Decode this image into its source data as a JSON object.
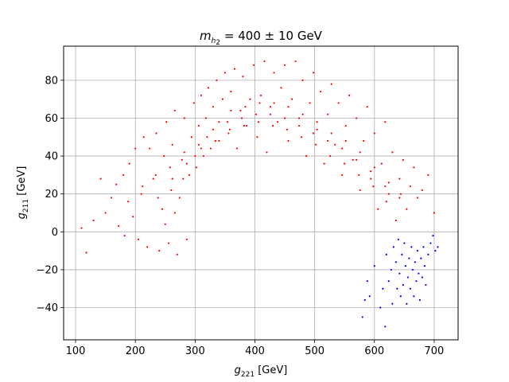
{
  "chart_data": {
    "type": "scatter",
    "title": {
      "base": "m",
      "sub": "h",
      "subsub": "2",
      "rest": " = 400 ± 10 GeV"
    },
    "xlabel": {
      "base": "g",
      "sub": "221",
      "rest": " [GeV]"
    },
    "ylabel": {
      "base": "g",
      "sub": "211",
      "rest": " [GeV]"
    },
    "xlim": [
      80,
      740
    ],
    "ylim": [
      -57,
      98
    ],
    "xticks": [
      100,
      200,
      300,
      400,
      500,
      600,
      700
    ],
    "yticks": [
      -40,
      -20,
      0,
      20,
      40,
      60,
      80
    ],
    "grid": true,
    "series": [
      {
        "color": "#ff0000",
        "points": [
          [
            110,
            2
          ],
          [
            118,
            -11
          ],
          [
            130,
            6
          ],
          [
            142,
            28
          ],
          [
            150,
            10
          ],
          [
            160,
            18
          ],
          [
            168,
            25
          ],
          [
            172,
            3
          ],
          [
            180,
            30
          ],
          [
            182,
            -2
          ],
          [
            190,
            36
          ],
          [
            196,
            8
          ],
          [
            200,
            44
          ],
          [
            205,
            -4
          ],
          [
            210,
            20
          ],
          [
            214,
            50
          ],
          [
            220,
            -8
          ],
          [
            224,
            44
          ],
          [
            230,
            28
          ],
          [
            235,
            52
          ],
          [
            240,
            -10
          ],
          [
            245,
            12
          ],
          [
            248,
            40
          ],
          [
            252,
            58
          ],
          [
            256,
            -6
          ],
          [
            260,
            22
          ],
          [
            262,
            46
          ],
          [
            266,
            64
          ],
          [
            270,
            -12
          ],
          [
            274,
            18
          ],
          [
            278,
            38
          ],
          [
            282,
            60
          ],
          [
            286,
            -4
          ],
          [
            290,
            30
          ],
          [
            294,
            50
          ],
          [
            298,
            68
          ],
          [
            302,
            34
          ],
          [
            306,
            56
          ],
          [
            310,
            72
          ],
          [
            314,
            40
          ],
          [
            318,
            60
          ],
          [
            322,
            76
          ],
          [
            326,
            44
          ],
          [
            330,
            66
          ],
          [
            336,
            80
          ],
          [
            340,
            48
          ],
          [
            346,
            70
          ],
          [
            350,
            84
          ],
          [
            356,
            52
          ],
          [
            360,
            74
          ],
          [
            366,
            86
          ],
          [
            370,
            44
          ],
          [
            376,
            64
          ],
          [
            380,
            82
          ],
          [
            386,
            56
          ],
          [
            392,
            70
          ],
          [
            398,
            88
          ],
          [
            404,
            50
          ],
          [
            410,
            72
          ],
          [
            416,
            90
          ],
          [
            420,
            42
          ],
          [
            426,
            66
          ],
          [
            432,
            84
          ],
          [
            438,
            58
          ],
          [
            444,
            76
          ],
          [
            450,
            88
          ],
          [
            456,
            48
          ],
          [
            462,
            70
          ],
          [
            468,
            90
          ],
          [
            474,
            60
          ],
          [
            480,
            80
          ],
          [
            486,
            40
          ],
          [
            492,
            68
          ],
          [
            498,
            84
          ],
          [
            504,
            54
          ],
          [
            510,
            74
          ],
          [
            516,
            36
          ],
          [
            522,
            62
          ],
          [
            528,
            78
          ],
          [
            534,
            46
          ],
          [
            540,
            68
          ],
          [
            546,
            30
          ],
          [
            552,
            56
          ],
          [
            558,
            72
          ],
          [
            564,
            38
          ],
          [
            570,
            60
          ],
          [
            576,
            22
          ],
          [
            582,
            48
          ],
          [
            588,
            66
          ],
          [
            594,
            28
          ],
          [
            600,
            52
          ],
          [
            606,
            12
          ],
          [
            612,
            36
          ],
          [
            618,
            58
          ],
          [
            624,
            20
          ],
          [
            630,
            42
          ],
          [
            636,
            6
          ],
          [
            642,
            28
          ],
          [
            648,
            38
          ],
          [
            654,
            12
          ],
          [
            660,
            24
          ],
          [
            666,
            34
          ],
          [
            672,
            18
          ],
          [
            680,
            22
          ],
          [
            690,
            30
          ],
          [
            700,
            10
          ],
          [
            234,
            30
          ],
          [
            258,
            34
          ],
          [
            282,
            42
          ],
          [
            306,
            46
          ],
          [
            330,
            54
          ],
          [
            354,
            58
          ],
          [
            378,
            60
          ],
          [
            402,
            62
          ],
          [
            426,
            62
          ],
          [
            450,
            60
          ],
          [
            474,
            56
          ],
          [
            498,
            52
          ],
          [
            522,
            48
          ],
          [
            546,
            44
          ],
          [
            570,
            38
          ],
          [
            594,
            32
          ],
          [
            618,
            24
          ],
          [
            642,
            18
          ],
          [
            250,
            4
          ],
          [
            266,
            10
          ],
          [
            280,
            28
          ],
          [
            300,
            40
          ],
          [
            320,
            50
          ],
          [
            340,
            58
          ],
          [
            360,
            64
          ],
          [
            384,
            66
          ],
          [
            408,
            68
          ],
          [
            432,
            68
          ],
          [
            456,
            66
          ],
          [
            480,
            62
          ],
          [
            504,
            58
          ],
          [
            528,
            52
          ],
          [
            552,
            48
          ],
          [
            576,
            42
          ],
          [
            600,
            34
          ],
          [
            624,
            26
          ],
          [
            644,
            20
          ],
          [
            188,
            16
          ],
          [
            212,
            24
          ],
          [
            238,
            18
          ],
          [
            262,
            28
          ],
          [
            286,
            36
          ],
          [
            310,
            44
          ],
          [
            334,
            48
          ],
          [
            358,
            54
          ],
          [
            382,
            56
          ],
          [
            406,
            58
          ],
          [
            430,
            56
          ],
          [
            454,
            54
          ],
          [
            478,
            50
          ],
          [
            502,
            46
          ],
          [
            526,
            40
          ],
          [
            550,
            36
          ],
          [
            574,
            30
          ],
          [
            598,
            24
          ],
          [
            620,
            16
          ]
        ]
      },
      {
        "color": "#0000ff",
        "points": [
          [
            580,
            -45
          ],
          [
            584,
            -36
          ],
          [
            588,
            -26
          ],
          [
            592,
            -34
          ],
          [
            600,
            -18
          ],
          [
            610,
            -40
          ],
          [
            614,
            -30
          ],
          [
            618,
            -50
          ],
          [
            620,
            -12
          ],
          [
            624,
            -26
          ],
          [
            628,
            -20
          ],
          [
            630,
            -38
          ],
          [
            632,
            -8
          ],
          [
            636,
            -16
          ],
          [
            638,
            -30
          ],
          [
            640,
            -4
          ],
          [
            642,
            -22
          ],
          [
            644,
            -34
          ],
          [
            646,
            -12
          ],
          [
            648,
            -28
          ],
          [
            650,
            -6
          ],
          [
            652,
            -18
          ],
          [
            654,
            -38
          ],
          [
            656,
            -24
          ],
          [
            658,
            -14
          ],
          [
            660,
            -30
          ],
          [
            662,
            -8
          ],
          [
            664,
            -20
          ],
          [
            666,
            -34
          ],
          [
            668,
            -16
          ],
          [
            670,
            -26
          ],
          [
            672,
            -10
          ],
          [
            674,
            -22
          ],
          [
            676,
            -36
          ],
          [
            678,
            -14
          ],
          [
            680,
            -24
          ],
          [
            682,
            -8
          ],
          [
            684,
            -18
          ],
          [
            686,
            -28
          ],
          [
            690,
            -12
          ],
          [
            694,
            -6
          ],
          [
            698,
            -2
          ],
          [
            702,
            -10
          ],
          [
            706,
            -8
          ]
        ]
      }
    ]
  }
}
